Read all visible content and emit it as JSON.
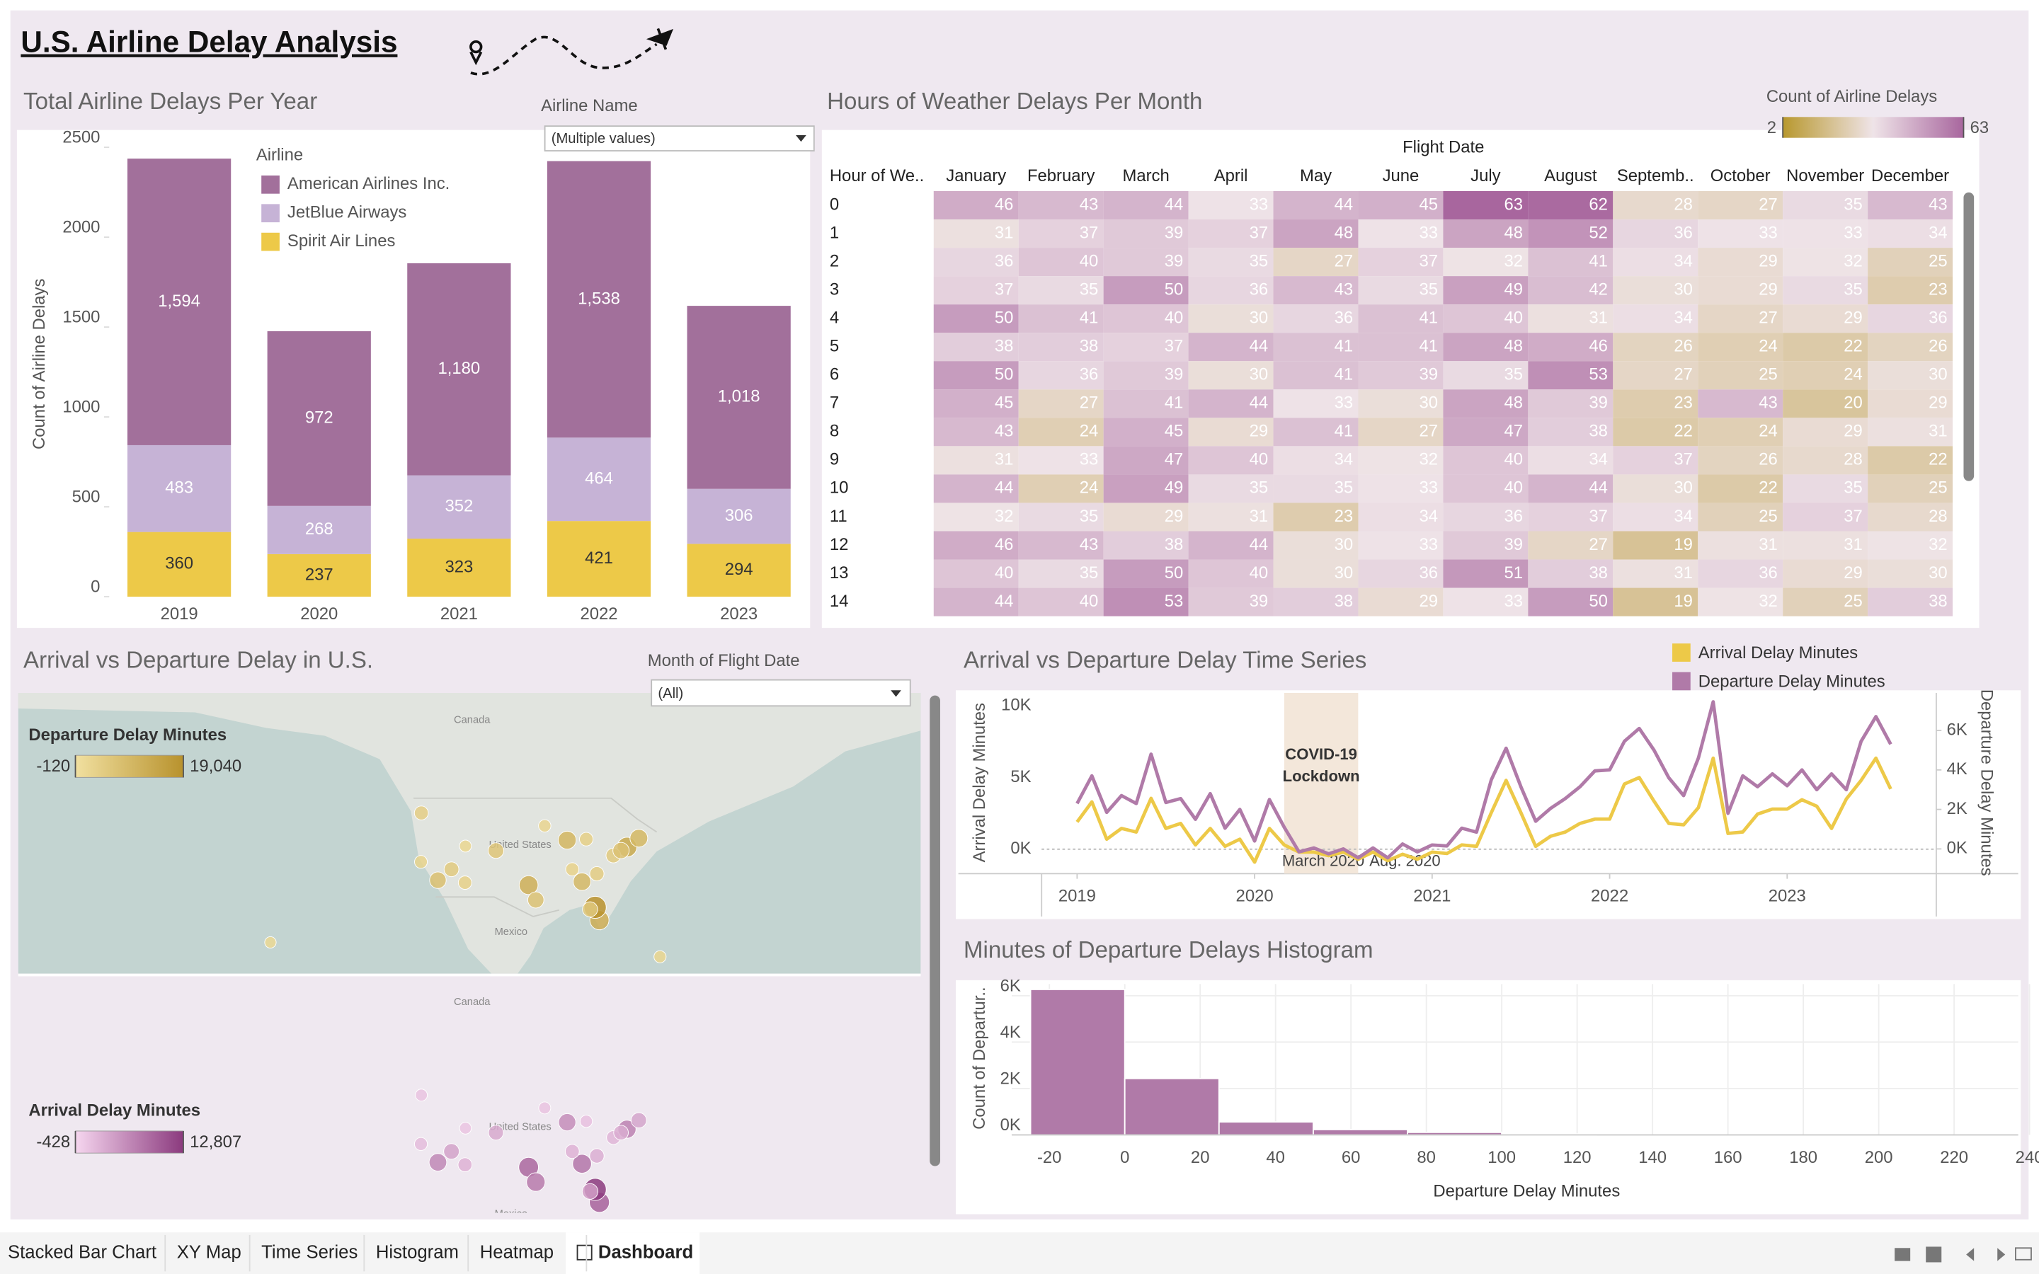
{
  "title": "U.S. Airline Delay Analysis",
  "tabs": [
    "Stacked Bar Chart",
    "XY Map",
    "Time Series",
    "Histogram",
    "Heatmap",
    "Dashboard"
  ],
  "filters": [
    {
      "label": "Airline Name",
      "value": "(Multiple values)"
    },
    {
      "label": "Month of Flight Date",
      "value": "(All)"
    }
  ],
  "chart_data": [
    {
      "type": "bar",
      "title": "Total Airline Delays Per Year",
      "y_label": "Count of Airline Delays",
      "legend_title": "Airline",
      "categories": [
        "2019",
        "2020",
        "2021",
        "2022",
        "2023"
      ],
      "series": [
        {
          "name": "American Airlines Inc.",
          "color": "#a2709b",
          "values": [
            1594,
            972,
            1180,
            1538,
            1018
          ],
          "value_labels": [
            "1,594",
            "972",
            "1,180",
            "1,538",
            "1,018"
          ]
        },
        {
          "name": "JetBlue Airways",
          "color": "#c6b3d6",
          "values": [
            483,
            268,
            352,
            464,
            306
          ]
        },
        {
          "name": "Spirit Air Lines",
          "color": "#edc948",
          "values": [
            360,
            237,
            323,
            421,
            294
          ]
        }
      ],
      "ylim": [
        0,
        2560
      ],
      "yticks": [
        0,
        500,
        1000,
        1500,
        2000,
        2500
      ],
      "grid": false
    },
    {
      "type": "heatmap",
      "title": "Hours of Weather Delays Per Month",
      "x_label": "Flight Date",
      "y_label": "Hour of We..",
      "legend_title": "Count of Airline Delays",
      "colorlim": [
        2,
        63
      ],
      "colors": [
        "#b8982e",
        "#efe4e8",
        "#a8669e"
      ],
      "categories": [
        "January",
        "February",
        "March",
        "April",
        "May",
        "June",
        "July",
        "August",
        "Septemb..",
        "October",
        "November",
        "December"
      ],
      "rows": [
        "0",
        "1",
        "2",
        "3",
        "4",
        "5",
        "6",
        "7",
        "8",
        "9",
        "10",
        "11",
        "12",
        "13",
        "14"
      ],
      "values": [
        [
          46,
          43,
          44,
          33,
          44,
          45,
          63,
          62,
          28,
          27,
          35,
          43
        ],
        [
          31,
          37,
          39,
          37,
          48,
          33,
          48,
          52,
          36,
          33,
          33,
          34
        ],
        [
          36,
          40,
          39,
          35,
          27,
          37,
          32,
          41,
          34,
          29,
          32,
          25
        ],
        [
          37,
          35,
          50,
          36,
          43,
          35,
          49,
          42,
          30,
          29,
          35,
          23
        ],
        [
          50,
          41,
          40,
          30,
          36,
          41,
          40,
          31,
          34,
          27,
          29,
          36
        ],
        [
          38,
          38,
          37,
          44,
          41,
          41,
          48,
          46,
          26,
          24,
          22,
          26
        ],
        [
          50,
          36,
          39,
          30,
          41,
          39,
          35,
          53,
          27,
          25,
          24,
          30
        ],
        [
          45,
          27,
          41,
          44,
          33,
          30,
          48,
          39,
          23,
          43,
          20,
          29
        ],
        [
          43,
          24,
          45,
          29,
          41,
          27,
          47,
          38,
          22,
          24,
          29,
          31
        ],
        [
          31,
          33,
          47,
          40,
          34,
          32,
          40,
          34,
          37,
          26,
          28,
          22
        ],
        [
          44,
          24,
          49,
          35,
          35,
          33,
          40,
          44,
          30,
          22,
          35,
          25
        ],
        [
          32,
          35,
          29,
          31,
          23,
          34,
          36,
          37,
          34,
          25,
          37,
          28
        ],
        [
          46,
          43,
          38,
          44,
          30,
          33,
          39,
          27,
          19,
          31,
          31,
          32
        ],
        [
          40,
          35,
          50,
          40,
          30,
          36,
          51,
          38,
          31,
          36,
          29,
          30
        ],
        [
          44,
          40,
          53,
          39,
          38,
          29,
          33,
          50,
          19,
          32,
          25,
          38
        ]
      ]
    },
    {
      "type": "map",
      "title": "Arrival vs Departure Delay in U.S.",
      "place_labels": [
        "Canada",
        "United States",
        "Mexico"
      ],
      "lon": [
        -122.3,
        -122.4,
        -118.4,
        -115.2,
        -112.0,
        -104.7,
        -97.0,
        -95.3,
        -87.9,
        -84.4,
        -80.3,
        -81.3,
        -82.5,
        -80.9,
        -73.8,
        -71.0,
        -77.0,
        -75.2,
        -83.4,
        -93.2,
        -157.9,
        -66.0,
        -111.9,
        -86.7
      ],
      "lat": [
        47.5,
        37.6,
        33.9,
        36.1,
        33.4,
        39.9,
        32.9,
        29.9,
        42.0,
        33.6,
        25.8,
        28.4,
        28.0,
        35.2,
        40.6,
        42.4,
        38.9,
        39.9,
        42.2,
        44.9,
        21.3,
        18.4,
        40.8,
        36.1
      ],
      "layers": [
        {
          "name": "Departure Delay Minutes",
          "colors": [
            "#f1e0a0",
            "#b8922d"
          ],
          "colorticks": [
            -120,
            {
              "value": 19040,
              "label": "19,040"
            }
          ],
          "values": [
            4200,
            3000,
            7800,
            5200,
            3600,
            6400,
            11800,
            7200,
            10200,
            9600,
            12400,
            19040,
            5800,
            4600,
            13500,
            9800,
            5200,
            7400,
            3800,
            2600,
            1800,
            2400,
            2200,
            3400
          ]
        },
        {
          "name": "Arrival Delay Minutes",
          "colors": [
            "#f6d6ef",
            "#8b3a7e"
          ],
          "colorticks": [
            -428,
            {
              "value": 12807,
              "label": "12,807"
            }
          ],
          "values": [
            1200,
            1800,
            6200,
            4000,
            2600,
            3400,
            9000,
            7400,
            5800,
            7800,
            9400,
            12807,
            4200,
            3000,
            6800,
            3800,
            2400,
            3200,
            1400,
            1200,
            900,
            1500,
            1100,
            2600
          ]
        }
      ]
    },
    {
      "type": "line",
      "title": "Arrival vs Departure Delay Time Series",
      "y_label": "Arrival Delay Minutes",
      "y2_label": "Departure Delay Minutes",
      "annotation": [
        "COVID-19",
        "Lockdown"
      ],
      "highlight_x": [
        2020.1667,
        2020.5833
      ],
      "highlight_labels": [
        "March 2020",
        "Aug. 2020"
      ],
      "x": [
        2019.0,
        2019.0833,
        2019.1667,
        2019.25,
        2019.3333,
        2019.4167,
        2019.5,
        2019.5833,
        2019.6667,
        2019.75,
        2019.8333,
        2019.9167,
        2020.0,
        2020.0833,
        2020.1667,
        2020.25,
        2020.3333,
        2020.4167,
        2020.5,
        2020.5833,
        2020.6667,
        2020.75,
        2020.8333,
        2020.9167,
        2021.0,
        2021.0833,
        2021.1667,
        2021.25,
        2021.3333,
        2021.4167,
        2021.5,
        2021.5833,
        2021.6667,
        2021.75,
        2021.8333,
        2021.9167,
        2022.0,
        2022.0833,
        2022.1667,
        2022.25,
        2022.3333,
        2022.4167,
        2022.5,
        2022.5833,
        2022.6667,
        2022.75,
        2022.8333,
        2022.9167,
        2023.0,
        2023.0833,
        2023.1667,
        2023.25,
        2023.3333,
        2023.4167,
        2023.5,
        2023.5833
      ],
      "series": [
        {
          "name": "Arrival Delay Minutes",
          "color": "#edc948",
          "values": [
            1900,
            3300,
            700,
            1450,
            1200,
            3550,
            1450,
            1800,
            300,
            1450,
            200,
            700,
            -900,
            1450,
            300,
            -200,
            -200,
            -450,
            -200,
            -700,
            -200,
            -800,
            -350,
            -700,
            -200,
            -300,
            300,
            200,
            2550,
            4800,
            2550,
            200,
            900,
            1200,
            1800,
            2100,
            2100,
            4550,
            5000,
            3350,
            1800,
            1700,
            2900,
            6350,
            1100,
            1200,
            2450,
            2800,
            2800,
            3450,
            3000,
            1450,
            3500,
            4800,
            6350,
            4200
          ]
        },
        {
          "name": "Departure Delay Minutes",
          "color": "#b07aa8",
          "axis": "y2",
          "values": [
            2300,
            3700,
            1850,
            2700,
            2300,
            4800,
            2350,
            2550,
            1500,
            2800,
            1050,
            2000,
            400,
            2500,
            1100,
            -150,
            50,
            -250,
            0,
            -450,
            50,
            -450,
            250,
            -150,
            200,
            150,
            1050,
            850,
            3500,
            5100,
            3150,
            1400,
            2050,
            2550,
            3150,
            3950,
            4000,
            5450,
            6100,
            5000,
            3600,
            2700,
            4600,
            7450,
            1800,
            3700,
            3150,
            3800,
            3200,
            4000,
            3000,
            3800,
            3000,
            5450,
            6700,
            5300
          ]
        }
      ],
      "xlim": [
        2018.8,
        2023.84
      ],
      "xticks": [
        2019,
        2020,
        2021,
        2022,
        2023
      ],
      "ylim": [
        -1700,
        10900
      ],
      "yticks": [
        {
          "value": 0,
          "label": "0K"
        },
        {
          "value": 5000,
          "label": "5K"
        },
        {
          "value": 10000,
          "label": "10K"
        }
      ],
      "y2lim": [
        -1250,
        7900
      ],
      "y2ticks": [
        {
          "value": 0,
          "label": "0K"
        },
        {
          "value": 2000,
          "label": "2K"
        },
        {
          "value": 4000,
          "label": "4K"
        },
        {
          "value": 6000,
          "label": "6K"
        }
      ]
    },
    {
      "type": "histogram",
      "title": "Minutes of Departure Delays Histogram",
      "x_label": "Departure Delay Minutes",
      "y_label": "Count of Departur..",
      "color": "#b07aa8",
      "bins": [
        -25,
        0,
        25,
        50,
        75,
        100,
        125
      ],
      "values": [
        6270,
        2430,
        560,
        230,
        110,
        40
      ],
      "xlim": [
        -30,
        237
      ],
      "xticks": [
        -20,
        0,
        20,
        40,
        60,
        80,
        100,
        120,
        140,
        160,
        180,
        200,
        220,
        240
      ],
      "ylim": [
        0,
        6500
      ],
      "yticks": [
        {
          "value": 0,
          "label": "0K"
        },
        {
          "value": 2000,
          "label": "2K"
        },
        {
          "value": 4000,
          "label": "4K"
        },
        {
          "value": 6000,
          "label": "6K"
        }
      ],
      "grid": true
    }
  ]
}
